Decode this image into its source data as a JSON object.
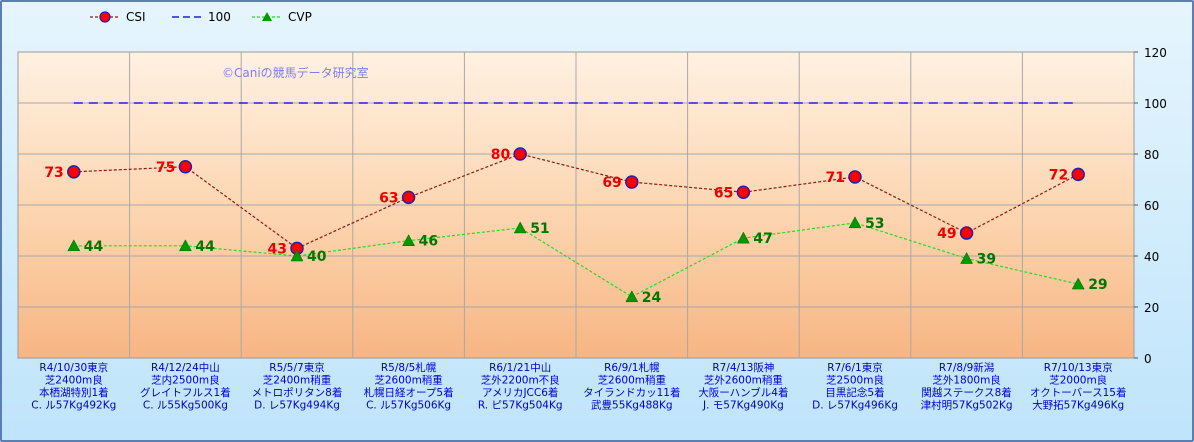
{
  "chart_data": {
    "type": "line",
    "watermark": "©Caniの競馬データ研究室",
    "ylim": [
      0,
      120
    ],
    "yticks": [
      0,
      20,
      40,
      60,
      80,
      100,
      120
    ],
    "grid": true,
    "legend_position": "top-left",
    "categories": [
      [
        "R4/10/30東京",
        "芝2400m良",
        "本栖湖特別1着",
        "C. ル57Kg492Kg"
      ],
      [
        "R4/12/24中山",
        "芝内2500m良",
        "グレイトフルス1着",
        "C. ル55Kg500Kg"
      ],
      [
        "R5/5/7東京",
        "芝2400m稍重",
        "メトロポリタン8着",
        "D. レ57Kg494Kg"
      ],
      [
        "R5/8/5札幌",
        "芝2600m稍重",
        "札幌日経オープ5着",
        "C. ル57Kg506Kg"
      ],
      [
        "R6/1/21中山",
        "芝外2200m不良",
        "アメリカJCC6着",
        "R. ピ57Kg504Kg"
      ],
      [
        "R6/9/1札幌",
        "芝2600m稍重",
        "タイランドカッ11着",
        "武豊55Kg488Kg"
      ],
      [
        "R7/4/13阪神",
        "芝外2600m稍重",
        "大阪ーハンブル4着",
        "J. モ57Kg490Kg"
      ],
      [
        "R7/6/1東京",
        "芝2500m良",
        "目黒記念5着",
        "D. レ57Kg496Kg"
      ],
      [
        "R7/8/9新潟",
        "芝外1800m良",
        "関越ステークス8着",
        "津村明57Kg502Kg"
      ],
      [
        "R7/10/13東京",
        "芝2000m良",
        "オクトーバース15着",
        "大野拓57Kg496Kg"
      ]
    ],
    "series": [
      {
        "name": "CSI",
        "values": [
          73,
          75,
          43,
          63,
          80,
          69,
          65,
          71,
          49,
          72
        ],
        "color": "#8b1a1a",
        "marker": "#ff0000",
        "label_color": "#ee0000",
        "label_side": "left"
      },
      {
        "name": "100",
        "values": [
          100,
          100,
          100,
          100,
          100,
          100,
          100,
          100,
          100,
          100
        ],
        "color": "#1f1fe0"
      },
      {
        "name": "CVP",
        "values": [
          44,
          44,
          40,
          46,
          51,
          24,
          47,
          53,
          39,
          29
        ],
        "color": "#22dd22",
        "marker": "#009900",
        "label_color": "#007700",
        "label_side": "right"
      }
    ]
  }
}
